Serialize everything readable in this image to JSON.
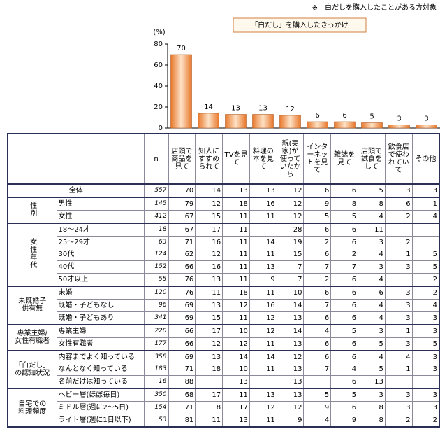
{
  "note": "※　白だしを購入したことがある方対象",
  "chart_data": {
    "type": "bar",
    "title": "「白だし」を購入したきっかけ",
    "y_unit": "(%)",
    "categories": [
      "店頭で商品を見て",
      "知人にすすめられて",
      "TVを見て",
      "料理の本を見て",
      "親(実家)が使っていたから",
      "インターネットを見て",
      "雑誌を見て",
      "店頭で試食をして",
      "飲食店で使われていて",
      "その他"
    ],
    "values": [
      70,
      14,
      13,
      13,
      12,
      6,
      6,
      5,
      3,
      3
    ],
    "color": "#f4a15a",
    "ylim": [
      0,
      80
    ],
    "yticks": [
      0,
      20,
      40,
      60,
      80
    ]
  },
  "table": {
    "n_header": "n",
    "groups": [
      {
        "label": "全体",
        "rows": [
          {
            "n": 557,
            "values": [
              70,
              14,
              13,
              13,
              12,
              6,
              6,
              5,
              3,
              3
            ]
          }
        ]
      },
      {
        "label": "性別",
        "rows": [
          {
            "label": "男性",
            "n": 145,
            "values": [
              79,
              12,
              18,
              16,
              12,
              9,
              8,
              8,
              6,
              1
            ]
          },
          {
            "label": "女性",
            "n": 412,
            "values": [
              67,
              15,
              11,
              11,
              12,
              5,
              5,
              4,
              2,
              4
            ]
          }
        ]
      },
      {
        "label": "女性年代",
        "rows": [
          {
            "label": "18～24才",
            "n": 18,
            "values": [
              67,
              17,
              11,
              null,
              28,
              6,
              6,
              11,
              null,
              null
            ]
          },
          {
            "label": "25～29才",
            "n": 63,
            "values": [
              71,
              16,
              11,
              14,
              19,
              2,
              6,
              3,
              2,
              null
            ]
          },
          {
            "label": "30代",
            "n": 124,
            "values": [
              62,
              12,
              11,
              11,
              15,
              6,
              2,
              4,
              1,
              5
            ]
          },
          {
            "label": "40代",
            "n": 152,
            "values": [
              66,
              16,
              11,
              13,
              7,
              7,
              7,
              3,
              3,
              5
            ]
          },
          {
            "label": "50才以上",
            "n": 55,
            "values": [
              76,
              13,
              11,
              9,
              7,
              2,
              6,
              4,
              null,
              2
            ]
          }
        ]
      },
      {
        "label": "未既婚子供有無",
        "rows": [
          {
            "label": "未婚",
            "n": 120,
            "values": [
              76,
              11,
              18,
              11,
              10,
              6,
              6,
              6,
              3,
              2
            ]
          },
          {
            "label": "既婚・子どもなし",
            "n": 96,
            "values": [
              69,
              13,
              12,
              16,
              14,
              7,
              6,
              4,
              3,
              4
            ]
          },
          {
            "label": "既婚・子どもあり",
            "n": 341,
            "values": [
              69,
              15,
              11,
              12,
              13,
              6,
              6,
              4,
              3,
              3
            ]
          }
        ]
      },
      {
        "label": "専業主婦/女性有職者",
        "rows": [
          {
            "label": "専業主婦",
            "n": 220,
            "values": [
              66,
              17,
              10,
              12,
              14,
              4,
              5,
              3,
              1,
              3
            ]
          },
          {
            "label": "女性有職者",
            "n": 177,
            "values": [
              66,
              12,
              12,
              11,
              13,
              6,
              6,
              5,
              3,
              5
            ]
          }
        ]
      },
      {
        "label": "「白だし」の認知状況",
        "rows": [
          {
            "label": "内容までよく知っている",
            "n": 358,
            "values": [
              69,
              13,
              14,
              14,
              12,
              6,
              6,
              4,
              4,
              3
            ]
          },
          {
            "label": "なんとなく知っている",
            "n": 183,
            "values": [
              71,
              18,
              10,
              11,
              13,
              7,
              4,
              5,
              1,
              3
            ]
          },
          {
            "label": "名前だけは知っている",
            "n": 16,
            "values": [
              88,
              null,
              13,
              null,
              13,
              null,
              6,
              13,
              null,
              null
            ]
          }
        ]
      },
      {
        "label": "自宅での料理頻度",
        "rows": [
          {
            "label": "ヘビー層(ほぼ毎日)",
            "n": 350,
            "values": [
              68,
              17,
              11,
              13,
              13,
              5,
              5,
              3,
              3,
              3
            ]
          },
          {
            "label": "ミドル層(週に2～5日)",
            "n": 154,
            "values": [
              71,
              8,
              17,
              12,
              12,
              9,
              6,
              8,
              3,
              3
            ]
          },
          {
            "label": "ライト層(週に1日以下)",
            "n": 53,
            "values": [
              81,
              11,
              13,
              11,
              9,
              4,
              9,
              8,
              2,
              2
            ]
          }
        ]
      }
    ]
  }
}
